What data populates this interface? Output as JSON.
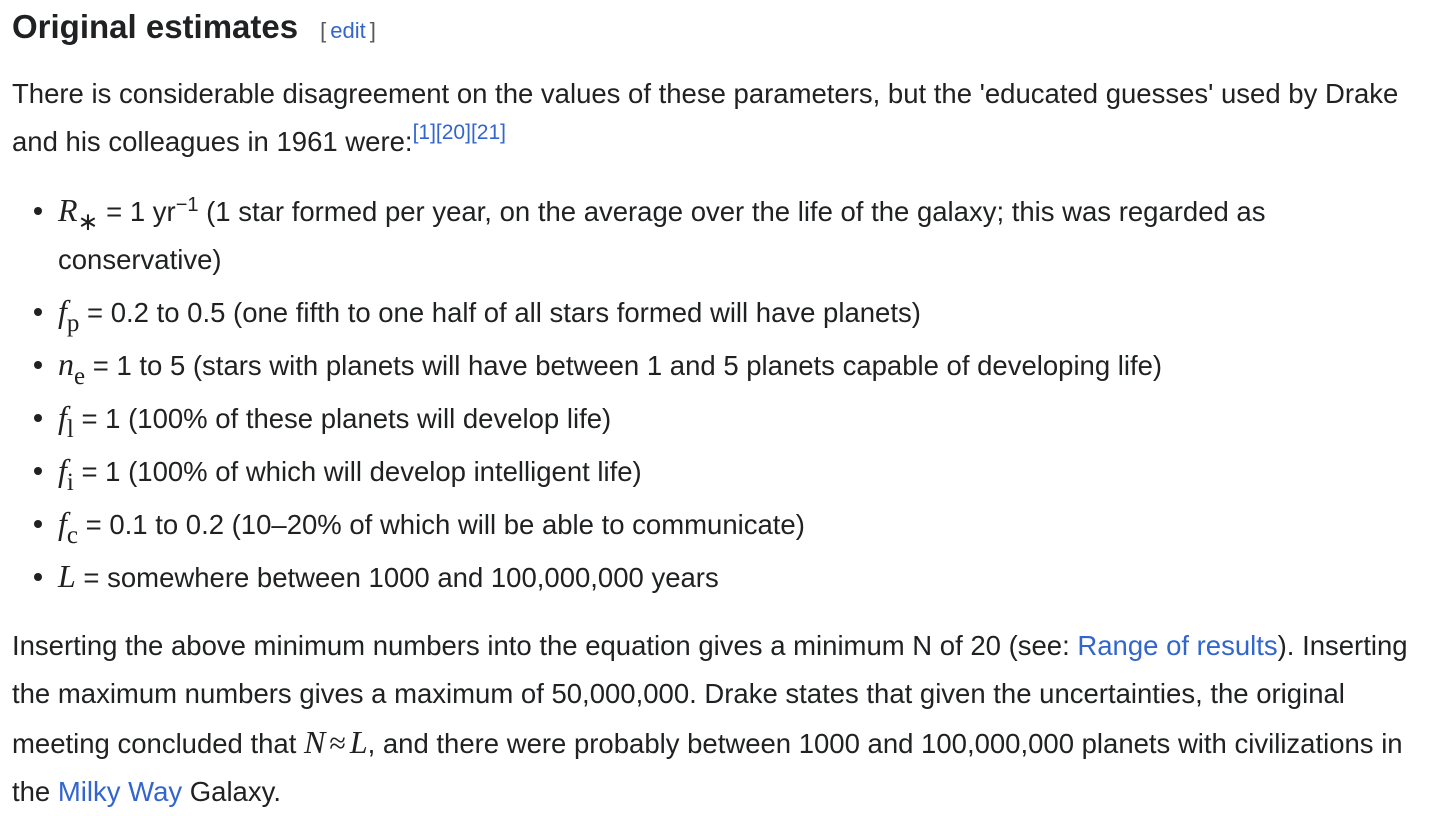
{
  "heading": {
    "title": "Original estimates",
    "edit_open": "[",
    "edit": "edit",
    "edit_close": "]"
  },
  "paragraphs": [
    [
      {
        "kind": "text",
        "text": "There is considerable disagreement on the values of these parameters, but the 'educated guesses' used by Drake and his colleagues in 1961 were:"
      },
      {
        "kind": "ref",
        "text": "[1]"
      },
      {
        "kind": "ref",
        "text": "[20]"
      },
      {
        "kind": "ref",
        "text": "[21]"
      }
    ],
    [
      {
        "kind": "text",
        "text": "Inserting the above minimum numbers into the equation gives a minimum N of 20 (see: "
      },
      {
        "kind": "link",
        "text": "Range of results"
      },
      {
        "kind": "text",
        "text": "). Inserting the maximum numbers gives a maximum of 50,000,000. Drake states that given the uncertainties, the original meeting concluded that "
      },
      {
        "kind": "math",
        "text": "N"
      },
      {
        "kind": "mathop",
        "text": "≈"
      },
      {
        "kind": "math",
        "text": "L"
      },
      {
        "kind": "text",
        "text": ", and there were probably between 1000 and 100,000,000 planets with civilizations in the "
      },
      {
        "kind": "link",
        "text": "Milky Way"
      },
      {
        "kind": "text",
        "text": " Galaxy."
      }
    ]
  ],
  "list": [
    [
      {
        "kind": "math",
        "text": "R"
      },
      {
        "kind": "sub",
        "text": "∗"
      },
      {
        "kind": "text",
        "text": " = 1 yr"
      },
      {
        "kind": "sup",
        "text": "−1"
      },
      {
        "kind": "text",
        "text": " (1 star formed per year, on the average over the life of the galaxy; this was regarded as conservative)"
      }
    ],
    [
      {
        "kind": "math",
        "text": "f"
      },
      {
        "kind": "sub",
        "text": "p"
      },
      {
        "kind": "text",
        "text": " = 0.2 to 0.5 (one fifth to one half of all stars formed will have planets)"
      }
    ],
    [
      {
        "kind": "math",
        "text": "n"
      },
      {
        "kind": "sub",
        "text": "e"
      },
      {
        "kind": "text",
        "text": " = 1 to 5 (stars with planets will have between 1 and 5 planets capable of developing life)"
      }
    ],
    [
      {
        "kind": "math",
        "text": "f"
      },
      {
        "kind": "sub",
        "text": "l"
      },
      {
        "kind": "text",
        "text": " = 1 (100% of these planets will develop life)"
      }
    ],
    [
      {
        "kind": "math",
        "text": "f"
      },
      {
        "kind": "sub",
        "text": "i"
      },
      {
        "kind": "text",
        "text": " = 1 (100% of which will develop intelligent life)"
      }
    ],
    [
      {
        "kind": "math",
        "text": "f"
      },
      {
        "kind": "sub",
        "text": "c"
      },
      {
        "kind": "text",
        "text": " = 0.1 to 0.2 (10–20% of which will be able to communicate)"
      }
    ],
    [
      {
        "kind": "math",
        "text": "L"
      },
      {
        "kind": "text",
        "text": " = somewhere between 1000 and 100,000,000 years"
      }
    ]
  ]
}
